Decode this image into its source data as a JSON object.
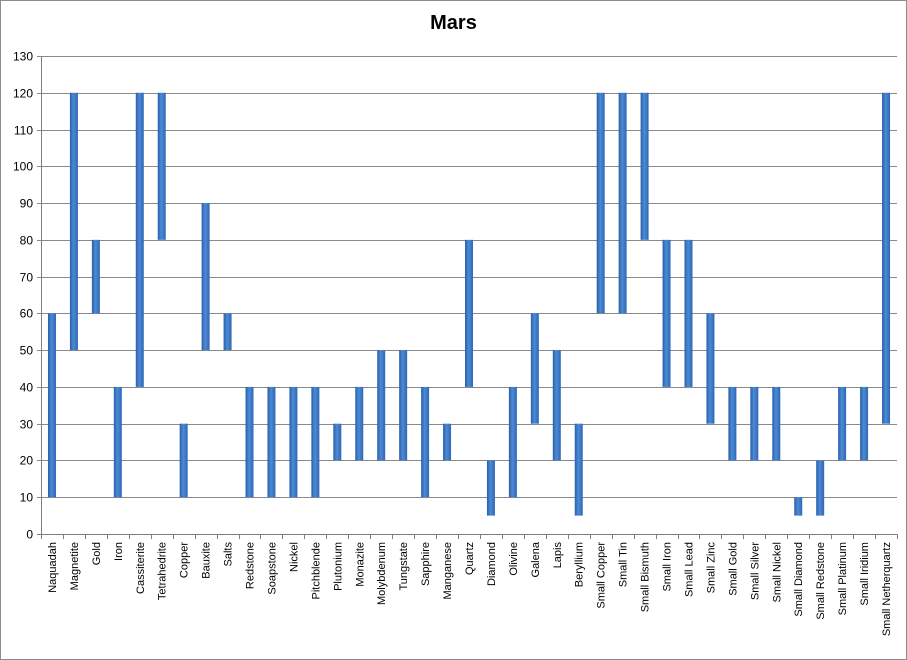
{
  "chart_data": {
    "type": "bar",
    "title": "Mars",
    "xlabel": "",
    "ylabel": "",
    "ylim": [
      0,
      130
    ],
    "yticks": [
      0,
      10,
      20,
      30,
      40,
      50,
      60,
      70,
      80,
      90,
      100,
      110,
      120,
      130
    ],
    "grid": true,
    "legend": "none",
    "bar_color": "#3d78c8",
    "categories": [
      "Naquadah",
      "Magnetite",
      "Gold",
      "Iron",
      "Cassiterite",
      "Tetrahedrite",
      "Copper",
      "Bauxite",
      "Salts",
      "Redstone",
      "Soapstone",
      "Nickel",
      "Pitchblende",
      "Plutonium",
      "Monazite",
      "Molybdenum",
      "Tungstate",
      "Sapphire",
      "Manganese",
      "Quartz",
      "Diamond",
      "Olivine",
      "Galena",
      "Lapis",
      "Beryllium",
      "Small Copper",
      "Small Tin",
      "Small Bismuth",
      "Small Iron",
      "Small Lead",
      "Small Zinc",
      "Small Gold",
      "Small Silver",
      "Small Nickel",
      "Small Diamond",
      "Small Redstone",
      "Small Platinum",
      "Small Iridium",
      "Small Netherquartz"
    ],
    "series": [
      {
        "low": [
          10,
          50,
          60,
          10,
          40,
          80,
          10,
          50,
          50,
          10,
          10,
          10,
          10,
          20,
          20,
          20,
          20,
          10,
          20,
          40,
          5,
          10,
          30,
          20,
          5,
          60,
          60,
          80,
          40,
          40,
          30,
          20,
          20,
          20,
          5,
          5,
          20,
          20,
          30
        ],
        "high": [
          60,
          120,
          80,
          40,
          120,
          120,
          30,
          90,
          60,
          40,
          40,
          40,
          40,
          30,
          40,
          50,
          50,
          40,
          30,
          80,
          20,
          40,
          60,
          50,
          30,
          120,
          120,
          120,
          80,
          80,
          60,
          40,
          40,
          40,
          10,
          20,
          40,
          40,
          120
        ]
      }
    ]
  }
}
